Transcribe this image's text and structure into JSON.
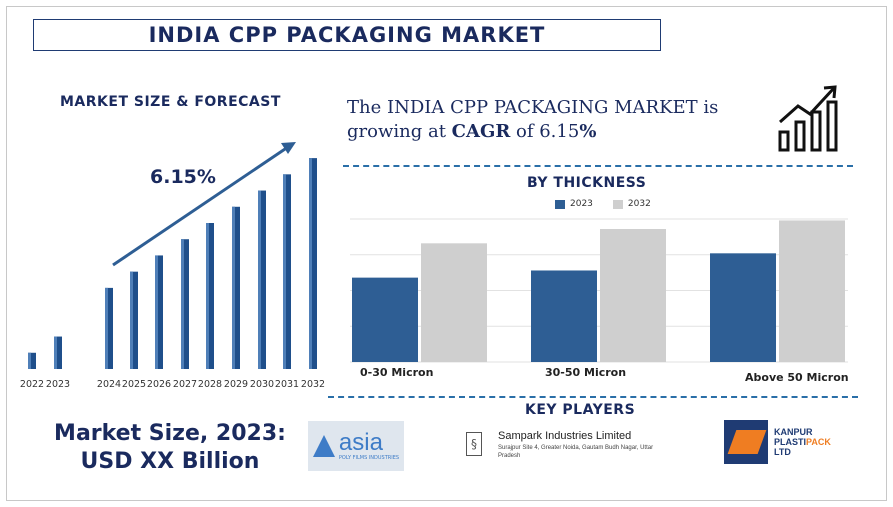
{
  "title": "INDIA CPP PACKAGING MARKET",
  "left_heading": "MARKET SIZE & FORECAST",
  "cagr_label": "6.15%",
  "headline": {
    "prefix": "The INDIA CPP PACKAGING MARKET is growing at ",
    "cagr_word": "CAGR",
    "middle": " of 6.15",
    "suffix": "%"
  },
  "thickness_heading": "BY THICKNESS",
  "key_players_heading": "KEY PLAYERS",
  "market_size_line1": "Market Size, 2023:",
  "market_size_line2": "USD XX Billion",
  "players": {
    "asia": {
      "name": "asia",
      "sub": "POLY FILMS INDUSTRIES"
    },
    "sampark": {
      "name": "Sampark Industries Limited",
      "address": "Surajpur Site 4, Greater Noida, Gautam Budh Nagar, Uttar Pradesh"
    },
    "kanpur": {
      "line1": "KANPUR",
      "line2a": "PLASTI",
      "line2b": "PACK",
      "line3": "LTD"
    }
  },
  "colors": {
    "navy": "#1a2a5e",
    "bar_2023": "#2e5e94",
    "bar_2032": "#cfcfcf",
    "accent": "#2a6fa8"
  },
  "icons": [
    "growth-chart-icon"
  ],
  "chart_data": [
    {
      "type": "bar",
      "title": "MARKET SIZE & FORECAST",
      "categories": [
        "2022",
        "2023",
        "2024",
        "2025",
        "2026",
        "2027",
        "2028",
        "2029",
        "2030",
        "2031",
        "2032"
      ],
      "values": [
        1.0,
        2.0,
        5.0,
        6.0,
        7.0,
        8.0,
        9.0,
        10.0,
        11.0,
        12.0,
        13.0
      ],
      "annotation": "6.15%",
      "ylim": [
        0,
        13.5
      ]
    },
    {
      "type": "bar",
      "title": "BY THICKNESS",
      "categories": [
        "0-30 Micron",
        "30-50 Micron",
        "Above 50 Micron"
      ],
      "series": [
        {
          "name": "2023",
          "values": [
            0.59,
            0.64,
            0.76
          ]
        },
        {
          "name": "2032",
          "values": [
            0.83,
            0.93,
            0.99
          ]
        }
      ],
      "ylim": [
        0,
        1.0
      ],
      "grid": true,
      "legend": "top"
    }
  ]
}
